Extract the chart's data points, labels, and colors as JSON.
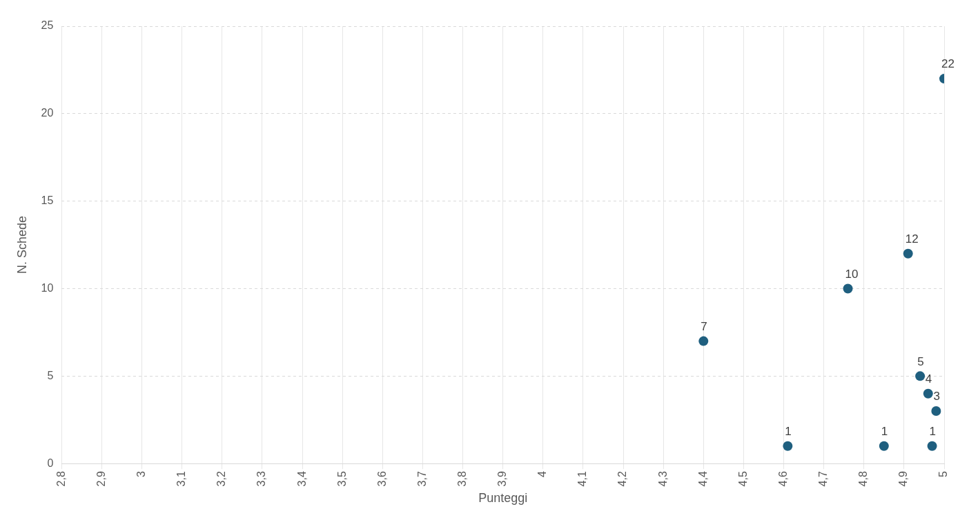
{
  "chart_data": {
    "type": "scatter",
    "xlabel": "Punteggi",
    "ylabel": "N. Schede",
    "x": [
      4.4,
      4.61,
      4.76,
      4.85,
      4.91,
      4.94,
      4.96,
      4.98,
      4.97,
      5
    ],
    "series": [
      {
        "color": "#1f5f7f",
        "values": [
          7,
          1,
          10,
          1,
          12,
          5,
          4,
          3,
          1,
          22
        ]
      }
    ],
    "xlim": [
      2.8,
      5
    ],
    "xticks": [
      {
        "value": 2.8,
        "label": "2,8"
      },
      {
        "value": 2.9,
        "label": "2,9"
      },
      {
        "value": 3,
        "label": "3"
      },
      {
        "value": 3.1,
        "label": "3,1"
      },
      {
        "value": 3.2,
        "label": "3,2"
      },
      {
        "value": 3.3,
        "label": "3,3"
      },
      {
        "value": 3.4,
        "label": "3,4"
      },
      {
        "value": 3.5,
        "label": "3,5"
      },
      {
        "value": 3.6,
        "label": "3,6"
      },
      {
        "value": 3.7,
        "label": "3,7"
      },
      {
        "value": 3.8,
        "label": "3,8"
      },
      {
        "value": 3.9,
        "label": "3,9"
      },
      {
        "value": 4,
        "label": "4"
      },
      {
        "value": 4.1,
        "label": "4,1"
      },
      {
        "value": 4.2,
        "label": "4,2"
      },
      {
        "value": 4.3,
        "label": "4,3"
      },
      {
        "value": 4.4,
        "label": "4,4"
      },
      {
        "value": 4.5,
        "label": "4,5"
      },
      {
        "value": 4.6,
        "label": "4,6"
      },
      {
        "value": 4.7,
        "label": "4,7"
      },
      {
        "value": 4.8,
        "label": "4,8"
      },
      {
        "value": 4.9,
        "label": "4,9"
      },
      {
        "value": 5,
        "label": "5"
      }
    ],
    "ylim": [
      0,
      25
    ],
    "yticks": [
      0,
      5,
      10,
      15,
      20,
      25
    ],
    "grid": true,
    "marker": "circle",
    "data_labels": true,
    "legend": false
  }
}
